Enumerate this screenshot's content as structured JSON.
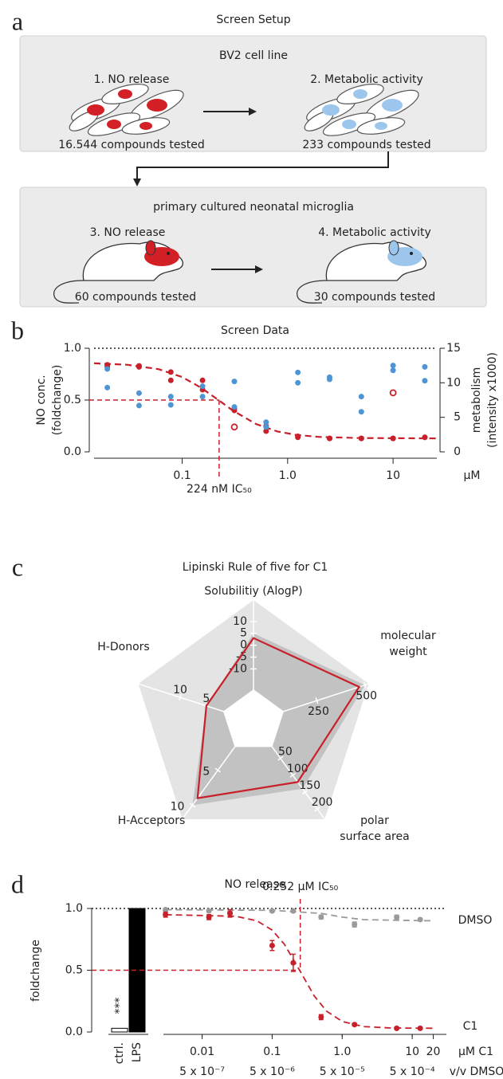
{
  "panel_labels": [
    "a",
    "b",
    "c",
    "d"
  ],
  "diagram": {
    "title": "Screen Setup",
    "boxes": [
      {
        "title": "BV2 cell line",
        "steps": [
          {
            "label": "1. NO release",
            "count": "16.544 compounds tested"
          },
          {
            "label": "2. Metabolic activity",
            "count": "233 compounds tested"
          }
        ]
      },
      {
        "title": "primary cultured neonatal microglia",
        "steps": [
          {
            "label": "3. NO release",
            "count": "60 compounds tested"
          },
          {
            "label": "4. Metabolic activity",
            "count": "30 compounds tested"
          }
        ]
      }
    ]
  },
  "chart_data": [
    {
      "type": "scatter",
      "title": "Screen Data",
      "log_x": true,
      "xlabel": "µM",
      "ylabel": [
        "NO conc.",
        "(foldchange)"
      ],
      "y2label": [
        "metabolism",
        "(intensity x1000)"
      ],
      "xlim": [
        0.0146,
        26
      ],
      "xticks": [
        0.1,
        {
          "value": 1,
          "label": "1.0"
        },
        10
      ],
      "ylim": [
        0,
        1
      ],
      "yticks": [
        {
          "value": 0,
          "label": "0.0"
        },
        0.5,
        {
          "value": 1,
          "label": "1.0"
        }
      ],
      "y2lim": [
        0,
        15
      ],
      "y2ticks": [
        0,
        5,
        10,
        15
      ],
      "hline": 1,
      "ic50": 0.224,
      "ic50_y": 0.5,
      "ic50_label": "224 nM IC₅₀",
      "series": [
        {
          "color": "#c8202a",
          "x": [
            0.0195,
            0.039,
            0.078,
            0.156,
            0.3125,
            0.625,
            1.25,
            2.5,
            5,
            10,
            20
          ],
          "values": [
            0.84,
            0.83,
            0.77,
            0.69,
            0.42,
            0.25,
            0.15,
            0.13,
            0.13,
            0.13,
            0.14
          ]
        },
        {
          "color": "#c8202a",
          "x": [
            0.0195,
            0.039,
            0.078,
            0.156,
            0.3125,
            0.625,
            1.25,
            2.5,
            5,
            10,
            20
          ],
          "values": [
            0.82,
            0.82,
            0.69,
            0.6,
            0.4,
            0.2,
            0.14,
            0.13,
            0.13,
            0.13,
            0.14
          ]
        },
        {
          "color": "#c8202a",
          "marker": "open",
          "x": [
            0.3125,
            10
          ],
          "values": [
            0.24,
            0.57
          ]
        },
        {
          "color": "#4d95d4",
          "axis": "y2",
          "x": [
            0.0195,
            0.039,
            0.078,
            0.156,
            0.3125,
            0.625,
            1.25,
            2.5,
            5,
            10,
            20
          ],
          "values": [
            12,
            8.5,
            8,
            9.5,
            10.2,
            4.3,
            10,
            10.8,
            8,
            12.5,
            12.3
          ]
        },
        {
          "color": "#4d95d4",
          "axis": "y2",
          "x": [
            0.0195,
            0.039,
            0.078,
            0.156,
            0.3125,
            0.625,
            1.25,
            2.5,
            5,
            10,
            20
          ],
          "values": [
            9.3,
            6.7,
            6.8,
            8,
            6.5,
            3.6,
            11.5,
            10.5,
            5.8,
            11.8,
            10.3
          ]
        }
      ],
      "fit": {
        "color": "#c8202a",
        "x": [
          0.0146,
          0.03,
          0.06,
          0.1,
          0.15,
          0.224,
          0.3,
          0.5,
          0.8,
          1.2,
          2,
          5,
          26
        ],
        "values": [
          0.855,
          0.841,
          0.798,
          0.722,
          0.621,
          0.495,
          0.401,
          0.269,
          0.197,
          0.164,
          0.144,
          0.133,
          0.13
        ]
      }
    },
    {
      "type": "radar",
      "title": "Lipinski Rule of five for C1",
      "color": "#c8202a",
      "axes": [
        {
          "label": [
            "Solubilitiy (AlogP)"
          ],
          "lim": [
            -32,
            19
          ],
          "ticks": [
            -10,
            -5,
            0,
            5,
            10
          ],
          "value": 3,
          "limit": 5
        },
        {
          "label": [
            "molecular",
            "weight"
          ],
          "lim": [
            -80,
            520
          ],
          "ticks": [
            250,
            500
          ],
          "value": 470,
          "limit": 500
        },
        {
          "label": [
            "polar",
            "surface area"
          ],
          "lim": [
            -60,
            230
          ],
          "ticks": [
            50,
            100,
            150,
            200
          ],
          "value": 120,
          "limit": 140
        },
        {
          "label": [
            "H-Acceptors"
          ],
          "lim": [
            -2,
            12
          ],
          "ticks": [
            5,
            10
          ],
          "value": 9,
          "limit": 10
        },
        {
          "label": [
            "H-Donors"
          ],
          "lim": [
            -4,
            18
          ],
          "ticks": [
            5,
            10
          ],
          "value": 5,
          "limit": 5
        }
      ]
    },
    {
      "type": "bar",
      "title": "NO release",
      "ylabel": "foldchange",
      "categories": [
        "ctrl.",
        "LPS"
      ],
      "values": [
        0.03,
        1
      ],
      "colors": [
        "#ffffff",
        "#000000"
      ],
      "annotation": "***",
      "ylim": [
        0,
        1
      ],
      "yticks": [
        {
          "value": 0,
          "label": "0.0"
        },
        0.5,
        {
          "value": 1,
          "label": "1.0"
        }
      ]
    },
    {
      "type": "line",
      "log_x": true,
      "xlabel": "µM C1",
      "x2label": "v/v DMSO",
      "xlim": [
        0.0028,
        40
      ],
      "xticks": [
        0.01,
        0.1,
        {
          "value": 1,
          "label": "1.0"
        },
        10,
        20
      ],
      "x2lim": [
        1.4e-07,
        0.002
      ],
      "x2ticks": [
        {
          "value": 5e-07,
          "label": "5 x 10⁻⁷"
        },
        {
          "value": 5e-06,
          "label": "5 x 10⁻⁶"
        },
        {
          "value": 5e-05,
          "label": "5 x 10⁻⁵"
        },
        {
          "value": 0.0005,
          "label": "5 x 10⁻⁴"
        }
      ],
      "ylim": [
        0,
        1
      ],
      "hline": 1,
      "ic50": 0.252,
      "ic50_y": 0.5,
      "ic50_label": "0.252 µM IC₅₀",
      "series": [
        {
          "name": "DMSO",
          "color": "#9a9a9a",
          "x": [
            0.003,
            0.0125,
            0.025,
            0.1,
            0.2,
            0.5,
            1.5,
            6,
            13
          ],
          "values": [
            0.99,
            0.98,
            0.97,
            0.98,
            0.98,
            0.93,
            0.87,
            0.93,
            0.91
          ],
          "errors": [
            0.01,
            0.01,
            0.01,
            0.01,
            0.01,
            0.015,
            0.02,
            0.015,
            0.01
          ]
        },
        {
          "name": "C1",
          "color": "#c8202a",
          "x": [
            0.003,
            0.0125,
            0.025,
            0.1,
            0.2,
            0.5,
            1.5,
            6,
            13
          ],
          "values": [
            0.95,
            0.93,
            0.96,
            0.7,
            0.56,
            0.12,
            0.06,
            0.03,
            0.03
          ],
          "errors": [
            0.02,
            0.02,
            0.03,
            0.04,
            0.07,
            0.02,
            0.01,
            0.01,
            0.01
          ]
        }
      ],
      "fits": [
        {
          "color": "#9a9a9a",
          "x": [
            0.003,
            0.1,
            0.5,
            1,
            2,
            5,
            20
          ],
          "values": [
            0.99,
            0.985,
            0.96,
            0.93,
            0.91,
            0.905,
            0.9
          ]
        },
        {
          "color": "#c8202a",
          "x": [
            0.003,
            0.03,
            0.06,
            0.1,
            0.15,
            0.252,
            0.4,
            0.6,
            1,
            2,
            5,
            20
          ],
          "values": [
            0.95,
            0.937,
            0.901,
            0.825,
            0.709,
            0.49,
            0.291,
            0.168,
            0.085,
            0.044,
            0.032,
            0.03
          ]
        }
      ]
    }
  ]
}
